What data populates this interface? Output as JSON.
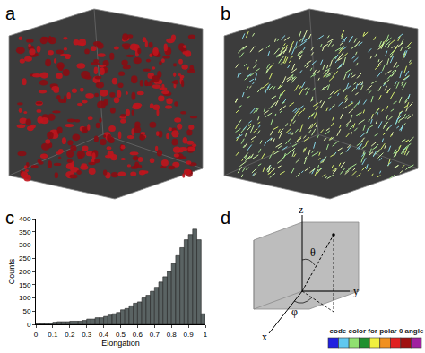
{
  "panel_labels": [
    "a",
    "b",
    "c",
    "d"
  ],
  "chart_data": {
    "type": "histogram",
    "x_label": "Elongation",
    "y_label": "Counts",
    "bins": [
      0,
      0.025,
      0.05,
      0.075,
      0.1,
      0.125,
      0.15,
      0.175,
      0.2,
      0.225,
      0.25,
      0.275,
      0.3,
      0.325,
      0.35,
      0.375,
      0.4,
      0.425,
      0.45,
      0.475,
      0.5,
      0.525,
      0.55,
      0.575,
      0.6,
      0.625,
      0.65,
      0.675,
      0.7,
      0.725,
      0.75,
      0.775,
      0.8,
      0.825,
      0.85,
      0.875,
      0.9,
      0.925,
      0.95,
      0.975,
      1
    ],
    "counts": [
      2,
      3,
      5,
      5,
      8,
      10,
      10,
      10,
      12,
      12,
      12,
      15,
      20,
      20,
      25,
      25,
      30,
      35,
      40,
      45,
      55,
      60,
      70,
      80,
      85,
      100,
      110,
      125,
      140,
      160,
      180,
      200,
      230,
      260,
      290,
      320,
      340,
      360,
      320,
      40
    ],
    "color": "#5a6363",
    "xlim": [
      0,
      1
    ],
    "ylim": [
      0,
      400
    ],
    "xticks": [
      0,
      0.1,
      0.2,
      0.3,
      0.4,
      0.5,
      0.6,
      0.7,
      0.8,
      0.9,
      1
    ],
    "yticks": [
      0,
      50,
      100,
      150,
      200,
      250,
      300,
      350,
      400
    ]
  },
  "diagram": {
    "axes": [
      "x",
      "y",
      "z"
    ],
    "angles": [
      "θ",
      "φ"
    ],
    "legend_title": "code color for polar θ angle",
    "legend_colors": [
      "#2020e0",
      "#60c8f0",
      "#90e070",
      "#209030",
      "#f0f040",
      "#f09020",
      "#e02020",
      "#a01010",
      "#a020a0"
    ]
  }
}
